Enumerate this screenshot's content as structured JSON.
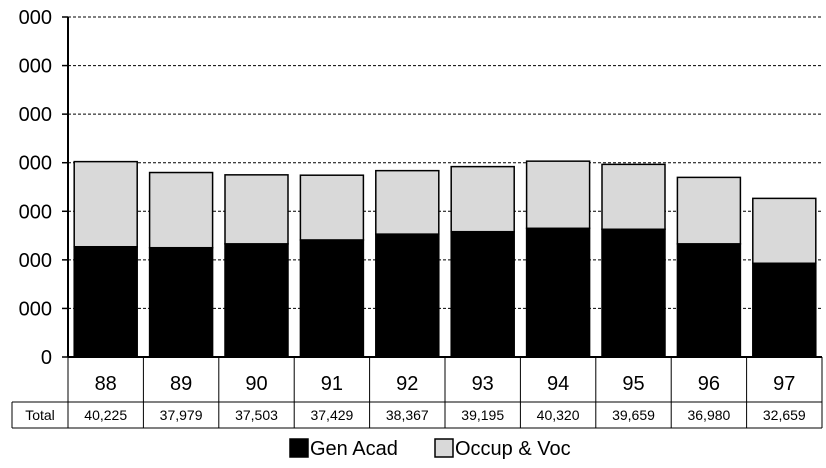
{
  "chart_data": {
    "type": "bar",
    "stacked": true,
    "categories": [
      "88",
      "89",
      "90",
      "91",
      "92",
      "93",
      "94",
      "95",
      "96",
      "97"
    ],
    "series": [
      {
        "name": "Gen Acad",
        "color": "#000000",
        "values": [
          22700,
          22500,
          23300,
          24100,
          25300,
          25800,
          26500,
          26300,
          23300,
          19300
        ]
      },
      {
        "name": "Occup & Voc",
        "color": "#d9d9d9",
        "values": [
          17525,
          15479,
          14203,
          13329,
          13067,
          13395,
          13820,
          13359,
          13680,
          13359
        ]
      }
    ],
    "totals_row_label": "Total",
    "totals": [
      "40,225",
      "37,979",
      "37,503",
      "37,429",
      "38,367",
      "39,195",
      "40,320",
      "39,659",
      "36,980",
      "32,659"
    ],
    "y_tick_labels": [
      "000",
      "000",
      "000",
      "000",
      "000",
      "000",
      "000",
      "0"
    ],
    "ylim": [
      0,
      70000
    ],
    "grid": true,
    "grid_style": "dashed",
    "legend_position": "bottom"
  }
}
